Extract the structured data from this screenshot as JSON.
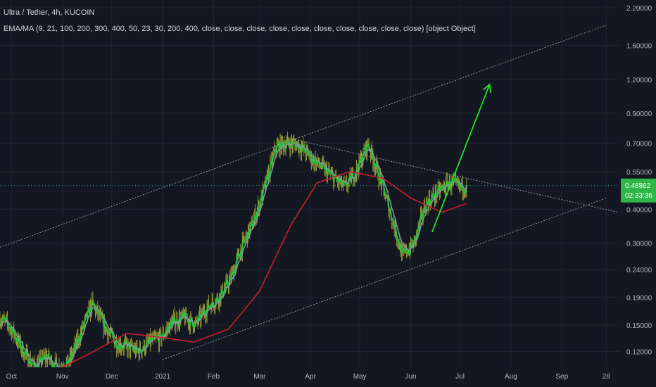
{
  "header": {
    "title": "Ultra / Tether, 4h, KUCOIN",
    "indicator": "EMA/MA (9, 21, 100, 200, 300, 400, 50, 23, 30, 200, 400, close, close, close, close, close, close, close, close, close, close) [object Object]"
  },
  "price_label": "0.48862",
  "countdown_label": "02:33:36",
  "colors": {
    "background": "#131722",
    "grid": "#1f2430",
    "axis_text": "#b2b5be",
    "candle": "#c8c836",
    "ema_green": "#22c33c",
    "ma_grey": "#8d949a",
    "ma_red": "#c8202c",
    "trendline": "#9598a1",
    "arrow": "#22e022",
    "last_price_bg": "#26a69a"
  },
  "chart_data": {
    "type": "line",
    "y_scale": "log",
    "ylim": [
      0.105,
      2.35
    ],
    "y_ticks": [
      "2.20000",
      "1.60000",
      "1.20000",
      "0.90000",
      "0.70000",
      "0.55000",
      "0.40000",
      "0.30000",
      "0.24000",
      "0.19000",
      "0.15000",
      "0.12000"
    ],
    "x_ticks": [
      "Oct",
      "Nov",
      "Dec",
      "2021",
      "Feb",
      "Mar",
      "Apr",
      "May",
      "Jun",
      "Jul",
      "Aug",
      "Sep",
      "28"
    ],
    "price": {
      "t": [
        "2020-09-24",
        "2020-10-01",
        "2020-10-08",
        "2020-10-15",
        "2020-10-22",
        "2020-10-29",
        "2020-11-05",
        "2020-11-12",
        "2020-11-19",
        "2020-11-26",
        "2020-12-03",
        "2020-12-10",
        "2020-12-17",
        "2020-12-24",
        "2020-12-31",
        "2021-01-07",
        "2021-01-14",
        "2021-01-21",
        "2021-01-28",
        "2021-02-04",
        "2021-02-11",
        "2021-02-18",
        "2021-02-25",
        "2021-03-04",
        "2021-03-11",
        "2021-03-18",
        "2021-03-25",
        "2021-04-01",
        "2021-04-08",
        "2021-04-15",
        "2021-04-22",
        "2021-04-29",
        "2021-05-06",
        "2021-05-13",
        "2021-05-20",
        "2021-05-27",
        "2021-06-03",
        "2021-06-10",
        "2021-06-17",
        "2021-06-24",
        "2021-07-01",
        "2021-07-05"
      ],
      "close": [
        0.16,
        0.145,
        0.12,
        0.105,
        0.115,
        0.105,
        0.11,
        0.14,
        0.18,
        0.15,
        0.13,
        0.125,
        0.12,
        0.13,
        0.135,
        0.155,
        0.16,
        0.15,
        0.175,
        0.19,
        0.22,
        0.29,
        0.36,
        0.48,
        0.68,
        0.7,
        0.69,
        0.62,
        0.57,
        0.52,
        0.48,
        0.56,
        0.7,
        0.52,
        0.38,
        0.27,
        0.3,
        0.42,
        0.46,
        0.5,
        0.48,
        0.49
      ]
    },
    "ma_red": {
      "t": [
        "2020-11-01",
        "2020-11-20",
        "2020-12-10",
        "2021-01-01",
        "2021-01-20",
        "2021-02-10",
        "2021-03-01",
        "2021-03-20",
        "2021-04-05",
        "2021-04-25",
        "2021-05-15",
        "2021-06-01",
        "2021-06-20",
        "2021-07-05"
      ],
      "value": [
        0.105,
        0.12,
        0.14,
        0.135,
        0.13,
        0.145,
        0.2,
        0.35,
        0.5,
        0.55,
        0.52,
        0.44,
        0.39,
        0.42
      ]
    },
    "trendlines": [
      {
        "t": [
          "2020-09-24",
          "2021-09-28"
        ],
        "value": [
          0.29,
          1.9
        ]
      },
      {
        "t": [
          "2021-01-01",
          "2021-09-28"
        ],
        "value": [
          0.112,
          0.44
        ]
      },
      {
        "t": [
          "2021-03-14",
          "2021-10-05"
        ],
        "value": [
          0.74,
          0.39
        ]
      }
    ],
    "arrow": {
      "t": [
        "2021-06-14",
        "2021-07-19"
      ],
      "value": [
        0.33,
        1.15
      ]
    },
    "last_price": 0.48862
  }
}
